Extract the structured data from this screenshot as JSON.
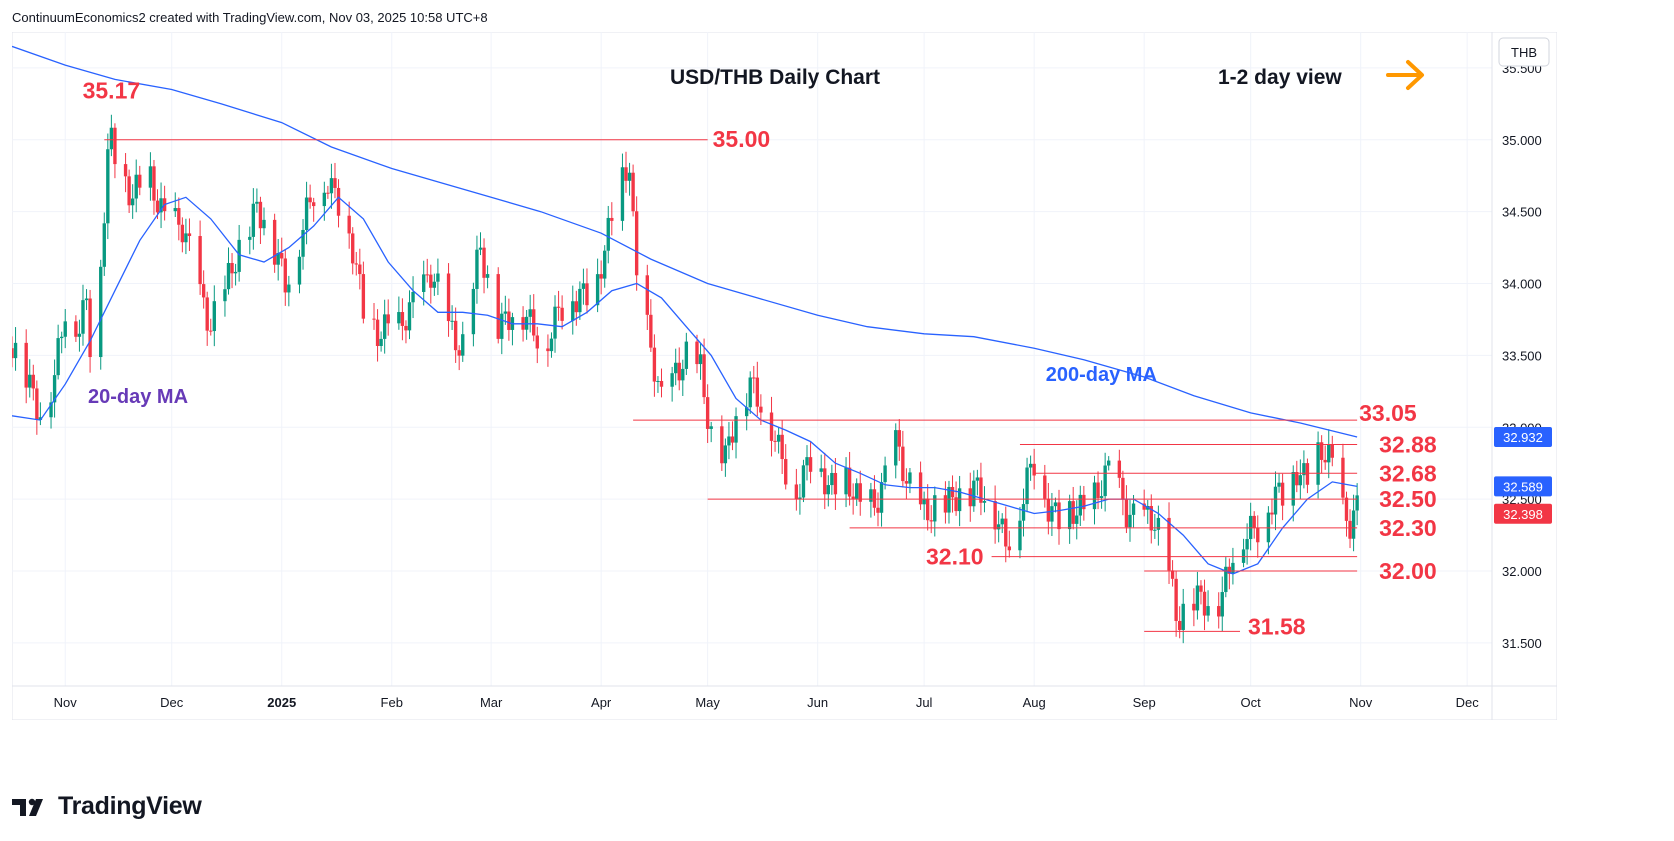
{
  "header": {
    "attribution": "ContinuumEconomics2 created with TradingView.com, Nov 03, 2025 10:58 UTC+8"
  },
  "brand": {
    "name": "TradingView",
    "logo_icon": "tradingview-logo-icon"
  },
  "colors": {
    "bull": "#089981",
    "bear": "#f23645",
    "level_line": "#f23645",
    "level_label": "#f23645",
    "ma": "#2962ff",
    "ma_label_20": "#673ab7",
    "ma_label_200": "#2962ff",
    "arrow": "#ff9800",
    "price_tag_ma": "#2962ff",
    "price_tag_last": "#f23645",
    "grid": "#f0f3fa",
    "axis_text": "#131722"
  },
  "chart_data": {
    "type": "candlestick",
    "title": "USD/THB Daily Chart",
    "view_label": "1-2 day view",
    "view_icon": "right-arrow-icon",
    "currency": "THB",
    "ylim": [
      31.2,
      35.75
    ],
    "y_ticks": [
      "35.500",
      "35.000",
      "34.500",
      "34.000",
      "33.500",
      "33.000",
      "32.500",
      "32.000",
      "31.500"
    ],
    "x_ticks": [
      "Nov",
      "Dec",
      "2025",
      "Feb",
      "Mar",
      "Apr",
      "May",
      "Jun",
      "Jul",
      "Aug",
      "Sep",
      "Oct",
      "Nov",
      "Dec"
    ],
    "x_range": [
      "2024-10-17",
      "2025-12-08"
    ],
    "price_tags": [
      {
        "label": "32.932",
        "value": 32.932,
        "kind": "ma"
      },
      {
        "label": "32.589",
        "value": 32.589,
        "kind": "ma"
      },
      {
        "label": "32.398",
        "value": 32.398,
        "kind": "last"
      }
    ],
    "levels": [
      {
        "label": "35.17",
        "value": 35.17,
        "date": "2024-11-14"
      },
      {
        "label": "35.00",
        "value": 35.0,
        "from": "2024-11-12",
        "to": "2025-05-01"
      },
      {
        "label": "33.05",
        "value": 33.05,
        "from": "2025-04-10",
        "to": "2025-10-31"
      },
      {
        "label": "32.88",
        "value": 32.88,
        "from": "2025-07-28",
        "to": "2025-10-31"
      },
      {
        "label": "32.68",
        "value": 32.68,
        "from": "2025-08-01",
        "to": "2025-10-31"
      },
      {
        "label": "32.50",
        "value": 32.5,
        "from": "2025-05-01",
        "to": "2025-10-31"
      },
      {
        "label": "32.30",
        "value": 32.3,
        "from": "2025-06-10",
        "to": "2025-10-31"
      },
      {
        "label": "32.10",
        "value": 32.1,
        "from": "2025-07-20",
        "to": "2025-10-31"
      },
      {
        "label": "32.00",
        "value": 32.0,
        "from": "2025-09-01",
        "to": "2025-10-31"
      },
      {
        "label": "31.58",
        "value": 31.58,
        "from": "2025-09-01",
        "to": "2025-09-28"
      }
    ],
    "series": [
      {
        "name": "20-day MA",
        "points": [
          [
            "2024-10-17",
            33.08
          ],
          [
            "2024-10-25",
            33.05
          ],
          [
            "2024-11-01",
            33.3
          ],
          [
            "2024-11-08",
            33.6
          ],
          [
            "2024-11-15",
            33.95
          ],
          [
            "2024-11-22",
            34.3
          ],
          [
            "2024-11-29",
            34.55
          ],
          [
            "2024-12-05",
            34.6
          ],
          [
            "2024-12-12",
            34.45
          ],
          [
            "2024-12-20",
            34.2
          ],
          [
            "2024-12-27",
            34.15
          ],
          [
            "2025-01-03",
            34.25
          ],
          [
            "2025-01-10",
            34.4
          ],
          [
            "2025-01-17",
            34.6
          ],
          [
            "2025-01-24",
            34.45
          ],
          [
            "2025-01-31",
            34.15
          ],
          [
            "2025-02-07",
            33.95
          ],
          [
            "2025-02-14",
            33.8
          ],
          [
            "2025-02-21",
            33.8
          ],
          [
            "2025-02-28",
            33.78
          ],
          [
            "2025-03-07",
            33.72
          ],
          [
            "2025-03-14",
            33.72
          ],
          [
            "2025-03-21",
            33.7
          ],
          [
            "2025-03-28",
            33.8
          ],
          [
            "2025-04-04",
            33.95
          ],
          [
            "2025-04-11",
            34.0
          ],
          [
            "2025-04-18",
            33.9
          ],
          [
            "2025-04-25",
            33.7
          ],
          [
            "2025-05-02",
            33.5
          ],
          [
            "2025-05-09",
            33.2
          ],
          [
            "2025-05-16",
            33.05
          ],
          [
            "2025-05-23",
            32.98
          ],
          [
            "2025-05-30",
            32.9
          ],
          [
            "2025-06-06",
            32.75
          ],
          [
            "2025-06-13",
            32.68
          ],
          [
            "2025-06-20",
            32.6
          ],
          [
            "2025-06-27",
            32.58
          ],
          [
            "2025-07-04",
            32.58
          ],
          [
            "2025-07-11",
            32.55
          ],
          [
            "2025-07-18",
            32.5
          ],
          [
            "2025-07-25",
            32.45
          ],
          [
            "2025-08-01",
            32.4
          ],
          [
            "2025-08-08",
            32.42
          ],
          [
            "2025-08-15",
            32.45
          ],
          [
            "2025-08-22",
            32.5
          ],
          [
            "2025-08-29",
            32.5
          ],
          [
            "2025-09-05",
            32.4
          ],
          [
            "2025-09-12",
            32.25
          ],
          [
            "2025-09-19",
            32.05
          ],
          [
            "2025-09-26",
            31.98
          ],
          [
            "2025-10-03",
            32.05
          ],
          [
            "2025-10-10",
            32.3
          ],
          [
            "2025-10-17",
            32.5
          ],
          [
            "2025-10-24",
            32.62
          ],
          [
            "2025-10-31",
            32.589
          ]
        ]
      },
      {
        "name": "200-day MA",
        "points": [
          [
            "2024-10-17",
            35.65
          ],
          [
            "2024-11-01",
            35.52
          ],
          [
            "2024-11-15",
            35.42
          ],
          [
            "2024-12-01",
            35.35
          ],
          [
            "2024-12-15",
            35.25
          ],
          [
            "2025-01-01",
            35.12
          ],
          [
            "2025-01-15",
            34.95
          ],
          [
            "2025-02-01",
            34.8
          ],
          [
            "2025-02-15",
            34.7
          ],
          [
            "2025-03-01",
            34.6
          ],
          [
            "2025-03-15",
            34.5
          ],
          [
            "2025-04-01",
            34.35
          ],
          [
            "2025-04-15",
            34.17
          ],
          [
            "2025-05-01",
            34.0
          ],
          [
            "2025-05-15",
            33.9
          ],
          [
            "2025-06-01",
            33.78
          ],
          [
            "2025-06-15",
            33.7
          ],
          [
            "2025-07-01",
            33.65
          ],
          [
            "2025-07-15",
            33.63
          ],
          [
            "2025-08-01",
            33.55
          ],
          [
            "2025-08-15",
            33.47
          ],
          [
            "2025-09-01",
            33.35
          ],
          [
            "2025-09-15",
            33.22
          ],
          [
            "2025-10-01",
            33.1
          ],
          [
            "2025-10-15",
            33.03
          ],
          [
            "2025-10-31",
            32.932
          ]
        ]
      }
    ],
    "ma_labels": [
      {
        "series": "20-day MA",
        "label": "20-day MA"
      },
      {
        "series": "200-day MA",
        "label": "200-day MA"
      }
    ],
    "ohlc_anchors": [
      [
        "2024-10-17",
        33.55
      ],
      [
        "2024-10-22",
        33.3
      ],
      [
        "2024-10-25",
        33.15
      ],
      [
        "2024-10-29",
        33.3
      ],
      [
        "2024-11-01",
        33.8
      ],
      [
        "2024-11-05",
        33.75
      ],
      [
        "2024-11-07",
        33.9
      ],
      [
        "2024-11-08",
        33.6
      ],
      [
        "2024-11-11",
        34.1
      ],
      [
        "2024-11-13",
        34.85
      ],
      [
        "2024-11-14",
        35.0
      ],
      [
        "2024-11-18",
        34.75
      ],
      [
        "2024-11-20",
        34.6
      ],
      [
        "2024-11-25",
        34.7
      ],
      [
        "2024-11-29",
        34.5
      ],
      [
        "2024-12-04",
        34.35
      ],
      [
        "2024-12-09",
        33.95
      ],
      [
        "2024-12-12",
        33.75
      ],
      [
        "2024-12-16",
        33.9
      ],
      [
        "2024-12-20",
        34.25
      ],
      [
        "2024-12-25",
        34.55
      ],
      [
        "2024-12-30",
        34.2
      ],
      [
        "2025-01-02",
        34.05
      ],
      [
        "2025-01-06",
        34.3
      ],
      [
        "2025-01-10",
        34.6
      ],
      [
        "2025-01-14",
        34.75
      ],
      [
        "2025-01-17",
        34.6
      ],
      [
        "2025-01-21",
        34.2
      ],
      [
        "2025-01-24",
        33.8
      ],
      [
        "2025-01-28",
        33.7
      ],
      [
        "2025-02-03",
        33.65
      ],
      [
        "2025-02-07",
        33.9
      ],
      [
        "2025-02-12",
        34.05
      ],
      [
        "2025-02-17",
        33.7
      ],
      [
        "2025-02-21",
        33.6
      ],
      [
        "2025-02-26",
        34.2
      ],
      [
        "2025-03-03",
        33.75
      ],
      [
        "2025-03-07",
        33.8
      ],
      [
        "2025-03-12",
        33.7
      ],
      [
        "2025-03-17",
        33.65
      ],
      [
        "2025-03-21",
        33.8
      ],
      [
        "2025-03-26",
        33.95
      ],
      [
        "2025-03-31",
        34.0
      ],
      [
        "2025-04-03",
        34.3
      ],
      [
        "2025-04-07",
        34.75
      ],
      [
        "2025-04-09",
        34.9
      ],
      [
        "2025-04-11",
        34.0
      ],
      [
        "2025-04-15",
        33.5
      ],
      [
        "2025-04-18",
        33.2
      ],
      [
        "2025-04-22",
        33.4
      ],
      [
        "2025-04-25",
        33.45
      ],
      [
        "2025-04-29",
        33.4
      ],
      [
        "2025-05-02",
        33.0
      ],
      [
        "2025-05-06",
        32.75
      ],
      [
        "2025-05-09",
        33.05
      ],
      [
        "2025-05-13",
        33.35
      ],
      [
        "2025-05-16",
        33.2
      ],
      [
        "2025-05-21",
        32.8
      ],
      [
        "2025-05-26",
        32.6
      ],
      [
        "2025-05-30",
        32.75
      ],
      [
        "2025-06-04",
        32.6
      ],
      [
        "2025-06-09",
        32.65
      ],
      [
        "2025-06-13",
        32.4
      ],
      [
        "2025-06-17",
        32.5
      ],
      [
        "2025-06-23",
        32.85
      ],
      [
        "2025-06-26",
        32.6
      ],
      [
        "2025-07-01",
        32.45
      ],
      [
        "2025-07-07",
        32.4
      ],
      [
        "2025-07-11",
        32.6
      ],
      [
        "2025-07-16",
        32.55
      ],
      [
        "2025-07-21",
        32.4
      ],
      [
        "2025-07-24",
        32.25
      ],
      [
        "2025-07-28",
        32.4
      ],
      [
        "2025-08-01",
        32.75
      ],
      [
        "2025-08-05",
        32.5
      ],
      [
        "2025-08-08",
        32.35
      ],
      [
        "2025-08-13",
        32.4
      ],
      [
        "2025-08-18",
        32.55
      ],
      [
        "2025-08-22",
        32.65
      ],
      [
        "2025-08-27",
        32.45
      ],
      [
        "2025-09-01",
        32.35
      ],
      [
        "2025-09-04",
        32.3
      ],
      [
        "2025-09-08",
        32.05
      ],
      [
        "2025-09-10",
        31.72
      ],
      [
        "2025-09-15",
        31.75
      ],
      [
        "2025-09-19",
        31.8
      ],
      [
        "2025-09-23",
        31.85
      ],
      [
        "2025-09-26",
        32.1
      ],
      [
        "2025-10-01",
        32.3
      ],
      [
        "2025-10-06",
        32.45
      ],
      [
        "2025-10-10",
        32.5
      ],
      [
        "2025-10-14",
        32.75
      ],
      [
        "2025-10-17",
        32.65
      ],
      [
        "2025-10-21",
        32.8
      ],
      [
        "2025-10-24",
        32.75
      ],
      [
        "2025-10-27",
        32.45
      ],
      [
        "2025-10-29",
        32.35
      ],
      [
        "2025-10-31",
        32.398
      ]
    ]
  }
}
